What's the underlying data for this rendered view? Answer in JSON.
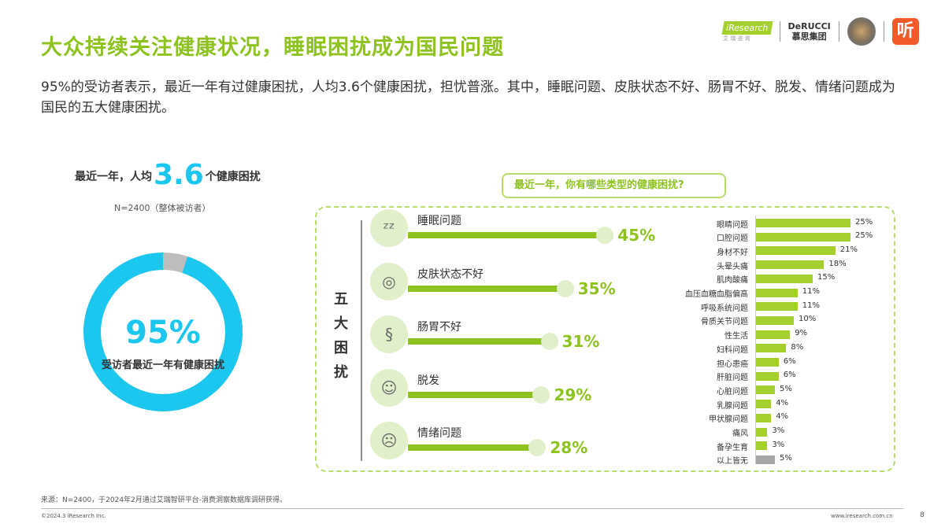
{
  "title": "大众持续关注健康状况，睡眠困扰成为国民问题",
  "intro": "95%的受访者表示，最近一年有过健康困扰，人均3.6个健康困扰，担忧普涨。其中，睡眠问题、皮肤状态不好、肠胃不好、脱发、情绪问题成为国民的五大健康困扰。",
  "logos": {
    "iresearch": "iResearch",
    "iresearch_sub": "艾 瑞 咨 询",
    "derucci": "DeRUCCI",
    "derucci_sub": "慕思集团",
    "ting": "听"
  },
  "summary": {
    "prefix": "最近一年，人均",
    "value": "3.6",
    "suffix": "个健康困扰",
    "n": "N=2400（整体被访者）",
    "pct": "95%",
    "pct_value": 95,
    "label": "受访者最近一年有健康困扰",
    "colors": {
      "main": "#1bc6ef",
      "rest": "#bdbdbd"
    }
  },
  "question": "最近一年，你有哪些类型的健康困扰?",
  "top5": {
    "title": "五大困扰",
    "items": [
      {
        "label": "睡眠问题",
        "value": 45,
        "text": "45%",
        "icon": "sleep-icon",
        "glyph": "ᶻᶻ"
      },
      {
        "label": "皮肤状态不好",
        "value": 35,
        "text": "35%",
        "icon": "fingerprint-icon",
        "glyph": "◎"
      },
      {
        "label": "肠胃不好",
        "value": 31,
        "text": "31%",
        "icon": "stomach-icon",
        "glyph": "§"
      },
      {
        "label": "脱发",
        "value": 29,
        "text": "29%",
        "icon": "hair-icon",
        "glyph": "☺"
      },
      {
        "label": "情绪问题",
        "value": 28,
        "text": "28%",
        "icon": "emotion-icon",
        "glyph": "☹"
      }
    ]
  },
  "others": [
    {
      "label": "眼睛问题",
      "value": 25,
      "text": "25%"
    },
    {
      "label": "口腔问题",
      "value": 25,
      "text": "25%"
    },
    {
      "label": "身材不好",
      "value": 21,
      "text": "21%"
    },
    {
      "label": "头晕头痛",
      "value": 18,
      "text": "18%"
    },
    {
      "label": "肌肉酸痛",
      "value": 15,
      "text": "15%"
    },
    {
      "label": "血压血糖血脂偏高",
      "value": 11,
      "text": "11%"
    },
    {
      "label": "呼吸系统问题",
      "value": 11,
      "text": "11%"
    },
    {
      "label": "骨质关节问题",
      "value": 10,
      "text": "10%"
    },
    {
      "label": "性生活",
      "value": 9,
      "text": "9%"
    },
    {
      "label": "妇科问题",
      "value": 8,
      "text": "8%"
    },
    {
      "label": "担心患癌",
      "value": 6,
      "text": "6%"
    },
    {
      "label": "肝脏问题",
      "value": 6,
      "text": "6%"
    },
    {
      "label": "心脏问题",
      "value": 5,
      "text": "5%"
    },
    {
      "label": "乳腺问题",
      "value": 4,
      "text": "4%"
    },
    {
      "label": "甲状腺问题",
      "value": 4,
      "text": "4%"
    },
    {
      "label": "痛风",
      "value": 3,
      "text": "3%"
    },
    {
      "label": "备孕生育",
      "value": 3,
      "text": "3%"
    },
    {
      "label": "以上皆无",
      "value": 5,
      "text": "5%",
      "gray": true
    }
  ],
  "colors": {
    "green": "#a5cf2e",
    "gray": "#a6a6a6"
  },
  "footer": {
    "source": "来源：N=2400，于2024年2月通过艾瑞智研平台-消费洞察数据库调研获得。",
    "copyright": "©2024.3 iResearch Inc.",
    "url": "www.iresearch.com.cn",
    "page": "8"
  }
}
